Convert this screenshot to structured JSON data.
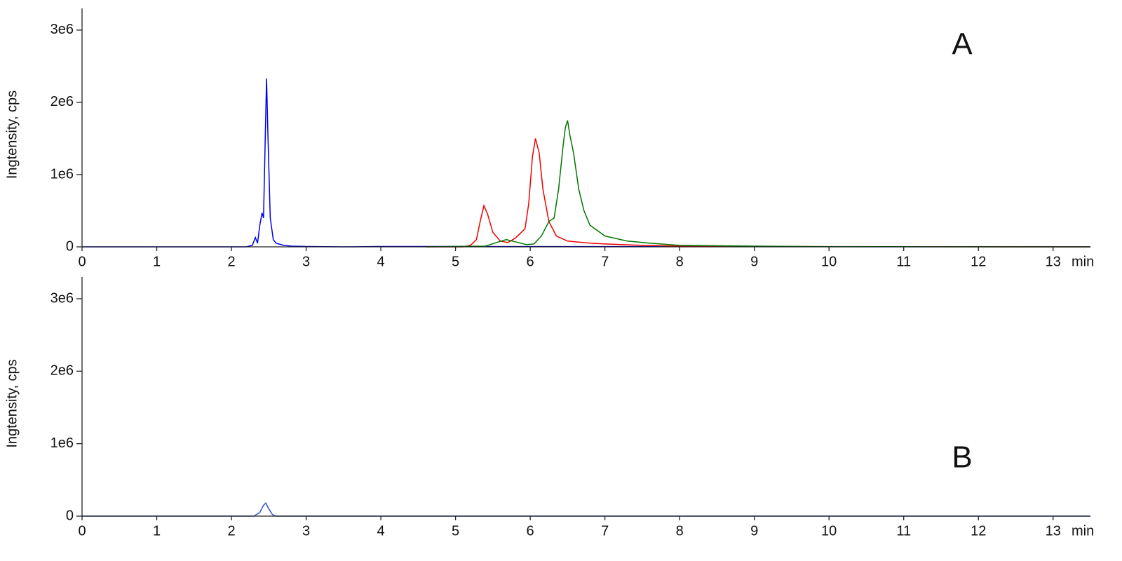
{
  "chart_data": [
    {
      "type": "line",
      "ylabel": "Ingtensity, cps",
      "xlabel": "min",
      "annotation": "A",
      "xlim": [
        0,
        13.5
      ],
      "xticks": [
        0,
        1,
        2,
        3,
        4,
        5,
        6,
        7,
        8,
        9,
        10,
        11,
        12,
        13
      ],
      "ylim": [
        0,
        3300000
      ],
      "yticks": [
        0,
        {
          "value": 1000000,
          "label": "1e6"
        },
        {
          "value": 2000000,
          "label": "2e6"
        },
        {
          "value": 3000000,
          "label": "3e6"
        }
      ],
      "series": [
        {
          "color": "#0000ee",
          "x": [
            0,
            2.2,
            2.28,
            2.32,
            2.35,
            2.38,
            2.41,
            2.43,
            2.45,
            2.47,
            2.49,
            2.52,
            2.56,
            2.6,
            2.7,
            2.8,
            3.0,
            3.5,
            4.0,
            13.5
          ],
          "values": [
            0,
            0,
            20000,
            130000,
            50000,
            300000,
            470000,
            400000,
            1400000,
            2330000,
            1500000,
            400000,
            100000,
            50000,
            20000,
            10000,
            5000,
            0,
            5000,
            0
          ]
        },
        {
          "color": "#ee0000",
          "x": [
            4.6,
            5.1,
            5.2,
            5.28,
            5.33,
            5.38,
            5.43,
            5.5,
            5.6,
            5.7,
            5.8,
            5.88,
            5.93,
            5.98,
            6.03,
            6.07,
            6.12,
            6.17,
            6.25,
            6.35,
            6.5,
            6.8,
            7.0,
            7.5,
            8.0,
            9.0,
            13.5
          ],
          "values": [
            0,
            0,
            20000,
            100000,
            350000,
            570000,
            450000,
            200000,
            80000,
            60000,
            120000,
            200000,
            250000,
            600000,
            1250000,
            1500000,
            1300000,
            800000,
            350000,
            150000,
            80000,
            50000,
            40000,
            20000,
            10000,
            5000,
            0
          ]
        },
        {
          "color": "#007700",
          "x": [
            4.6,
            5.4,
            5.55,
            5.68,
            5.8,
            5.95,
            6.05,
            6.15,
            6.25,
            6.32,
            6.38,
            6.44,
            6.47,
            6.5,
            6.53,
            6.58,
            6.65,
            6.72,
            6.8,
            7.0,
            7.3,
            7.6,
            8.0,
            9.0,
            10.0,
            13.5
          ],
          "values": [
            0,
            10000,
            60000,
            100000,
            70000,
            30000,
            40000,
            150000,
            350000,
            400000,
            800000,
            1400000,
            1650000,
            1750000,
            1550000,
            1300000,
            800000,
            500000,
            300000,
            150000,
            80000,
            50000,
            20000,
            10000,
            3000,
            0
          ]
        }
      ]
    },
    {
      "type": "line",
      "ylabel": "Ingtensity, cps",
      "xlabel": "min",
      "annotation": "B",
      "xlim": [
        0,
        13.5
      ],
      "xticks": [
        0,
        1,
        2,
        3,
        4,
        5,
        6,
        7,
        8,
        9,
        10,
        11,
        12,
        13
      ],
      "ylim": [
        0,
        3300000
      ],
      "yticks": [
        0,
        {
          "value": 1000000,
          "label": "1e6"
        },
        {
          "value": 2000000,
          "label": "2e6"
        },
        {
          "value": 3000000,
          "label": "3e6"
        }
      ],
      "series": [
        {
          "color": "#3355cc",
          "x": [
            0,
            2.3,
            2.38,
            2.43,
            2.46,
            2.5,
            2.55,
            2.6,
            13.5
          ],
          "values": [
            0,
            0,
            50000,
            150000,
            180000,
            100000,
            20000,
            0,
            0
          ]
        }
      ]
    }
  ]
}
